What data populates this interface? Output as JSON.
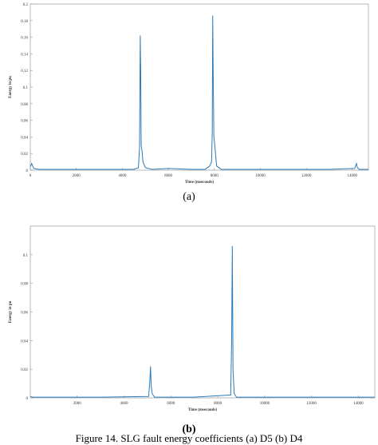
{
  "chart_data": [
    {
      "type": "line",
      "label": "(a)",
      "x_label": "Time (mseconds)",
      "y_label": "Energy in pu",
      "color": "#2b7bba",
      "xlim": [
        0,
        14700
      ],
      "ylim": [
        0,
        0.2
      ],
      "xticks": [
        0,
        2000,
        4000,
        6000,
        8000,
        10000,
        12000,
        14000
      ],
      "yticks": [
        0,
        0.02,
        0.04,
        0.06,
        0.08,
        0.1,
        0.12,
        0.14,
        0.16,
        0.18,
        0.2
      ],
      "x": [
        0,
        60,
        150,
        400,
        1500,
        3000,
        4500,
        4700,
        4750,
        4780,
        4800,
        4820,
        4850,
        4900,
        5000,
        5300,
        6000,
        7000,
        7600,
        7800,
        7880,
        7910,
        7930,
        7950,
        7980,
        8020,
        8100,
        8300,
        9000,
        11000,
        13000,
        14100,
        14180,
        14220,
        14300,
        14700
      ],
      "values": [
        0.004,
        0.008,
        0.002,
        0.001,
        0.001,
        0.001,
        0.001,
        0.003,
        0.028,
        0.162,
        0.118,
        0.03,
        0.025,
        0.01,
        0.003,
        0.001,
        0.002,
        0.001,
        0.001,
        0.005,
        0.01,
        0.045,
        0.186,
        0.12,
        0.04,
        0.03,
        0.005,
        0.001,
        0.001,
        0.001,
        0.001,
        0.002,
        0.008,
        0.003,
        0.001,
        0.001
      ]
    },
    {
      "type": "line",
      "label": "(b)",
      "x_label": "Time (mseconds)",
      "y_label": "Energy in pu",
      "color": "#2b7bba",
      "xlim": [
        0,
        14700
      ],
      "ylim": [
        0,
        0.12
      ],
      "xticks": [
        2000,
        4000,
        6000,
        8000,
        10000,
        12000,
        14000
      ],
      "yticks": [
        0,
        0.02,
        0.04,
        0.06,
        0.08,
        0.1
      ],
      "x": [
        0,
        100,
        3000,
        5050,
        5100,
        5130,
        5160,
        5200,
        5300,
        7000,
        8550,
        8590,
        8620,
        8650,
        8700,
        8800,
        11000,
        14700
      ],
      "values": [
        0.001,
        0.0005,
        0.0005,
        0.001,
        0.012,
        0.022,
        0.008,
        0.003,
        0.0005,
        0.0005,
        0.002,
        0.038,
        0.106,
        0.02,
        0.003,
        0.0005,
        0.0005,
        0.0005
      ]
    }
  ],
  "caption": "Figure 14. SLG fault energy coefficients (a) D5 (b) D4"
}
